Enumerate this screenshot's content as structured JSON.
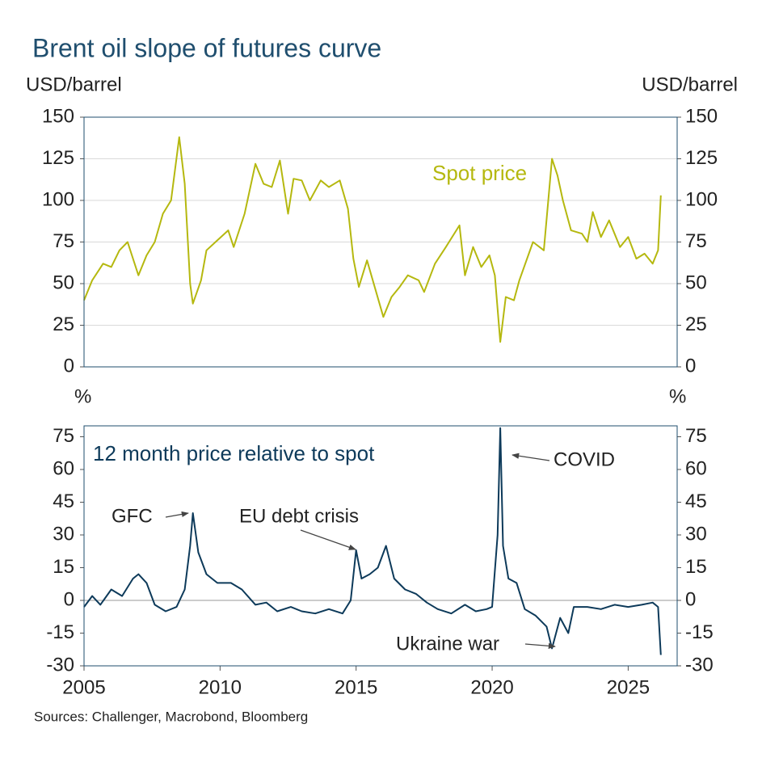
{
  "chart_data": [
    {
      "type": "line",
      "title": "Brent oil slope of futures curve",
      "y_label": "USD/barrel",
      "y2_label": "USD/barrel",
      "xlim": [
        2005,
        2026.8
      ],
      "ylim": [
        0,
        150
      ],
      "yticks": [
        0,
        25,
        50,
        75,
        100,
        125,
        150
      ],
      "y2lim": [
        0,
        150
      ],
      "y2ticks": [
        0,
        25,
        50,
        75,
        100,
        125,
        150
      ],
      "grid": true,
      "x": [
        2005.0,
        2005.3,
        2005.7,
        2006.0,
        2006.3,
        2006.6,
        2007.0,
        2007.3,
        2007.6,
        2007.9,
        2008.2,
        2008.5,
        2008.7,
        2008.9,
        2009.0,
        2009.3,
        2009.5,
        2009.9,
        2010.3,
        2010.5,
        2010.9,
        2011.3,
        2011.6,
        2011.9,
        2012.2,
        2012.5,
        2012.7,
        2013.0,
        2013.3,
        2013.7,
        2014.0,
        2014.4,
        2014.7,
        2014.9,
        2015.1,
        2015.4,
        2015.7,
        2016.0,
        2016.3,
        2016.6,
        2016.9,
        2017.3,
        2017.5,
        2017.9,
        2018.3,
        2018.8,
        2019.0,
        2019.3,
        2019.6,
        2019.9,
        2020.1,
        2020.3,
        2020.5,
        2020.8,
        2021.0,
        2021.5,
        2021.9,
        2022.2,
        2022.4,
        2022.6,
        2022.9,
        2023.3,
        2023.5,
        2023.7,
        2024.0,
        2024.3,
        2024.7,
        2025.0,
        2025.3,
        2025.6,
        2025.9,
        2026.1,
        2026.2
      ],
      "series": [
        {
          "name": "Spot price",
          "color": "#b5b80f",
          "values": [
            40,
            52,
            62,
            60,
            70,
            75,
            55,
            67,
            75,
            92,
            100,
            138,
            110,
            50,
            38,
            52,
            70,
            76,
            82,
            72,
            92,
            122,
            110,
            108,
            124,
            92,
            113,
            112,
            100,
            112,
            108,
            112,
            95,
            65,
            48,
            64,
            47,
            30,
            42,
            48,
            55,
            52,
            45,
            62,
            72,
            85,
            55,
            72,
            60,
            67,
            55,
            15,
            42,
            40,
            52,
            75,
            70,
            125,
            115,
            100,
            82,
            80,
            75,
            93,
            78,
            88,
            72,
            78,
            65,
            68,
            62,
            70,
            103
          ]
        }
      ]
    },
    {
      "type": "line",
      "y_label": "%",
      "y2_label": "%",
      "xlim": [
        2005,
        2026.8
      ],
      "xticks": [
        2005,
        2010,
        2015,
        2020,
        2025
      ],
      "ylim": [
        -30,
        80
      ],
      "yticks": [
        -30,
        -15,
        0,
        15,
        30,
        45,
        60,
        75
      ],
      "y2lim": [
        -30,
        80
      ],
      "y2ticks": [
        -30,
        -15,
        0,
        15,
        30,
        45,
        60,
        75
      ],
      "zero_line": true,
      "x": [
        2005.0,
        2005.3,
        2005.6,
        2006.0,
        2006.4,
        2006.8,
        2007.0,
        2007.3,
        2007.6,
        2008.0,
        2008.4,
        2008.7,
        2008.9,
        2009.0,
        2009.2,
        2009.5,
        2009.9,
        2010.4,
        2010.8,
        2011.3,
        2011.7,
        2012.1,
        2012.6,
        2013.0,
        2013.5,
        2014.0,
        2014.5,
        2014.8,
        2015.0,
        2015.2,
        2015.5,
        2015.8,
        2016.1,
        2016.4,
        2016.8,
        2017.2,
        2017.6,
        2018.0,
        2018.5,
        2019.0,
        2019.4,
        2019.8,
        2020.0,
        2020.2,
        2020.3,
        2020.4,
        2020.6,
        2020.9,
        2021.2,
        2021.6,
        2022.0,
        2022.2,
        2022.5,
        2022.8,
        2023.0,
        2023.5,
        2024.0,
        2024.5,
        2025.0,
        2025.5,
        2025.9,
        2026.1,
        2026.2
      ],
      "series": [
        {
          "name": "12 month price relative to spot",
          "color": "#0d3a5a",
          "values": [
            -3,
            2,
            -2,
            5,
            2,
            10,
            12,
            8,
            -2,
            -5,
            -3,
            5,
            25,
            40,
            22,
            12,
            8,
            8,
            5,
            -2,
            -1,
            -5,
            -3,
            -5,
            -6,
            -4,
            -6,
            0,
            23,
            10,
            12,
            15,
            25,
            10,
            5,
            3,
            -1,
            -4,
            -6,
            -2,
            -5,
            -4,
            -3,
            30,
            79,
            25,
            10,
            8,
            -4,
            -7,
            -12,
            -22,
            -8,
            -15,
            -3,
            -3,
            -4,
            -2,
            -3,
            -2,
            -1,
            -3,
            -25
          ]
        }
      ],
      "annotations": [
        "GFC",
        "EU debt crisis",
        "COVID",
        "Ukraine war"
      ],
      "source": "Sources: Challenger, Macrobond, Bloomberg"
    }
  ]
}
